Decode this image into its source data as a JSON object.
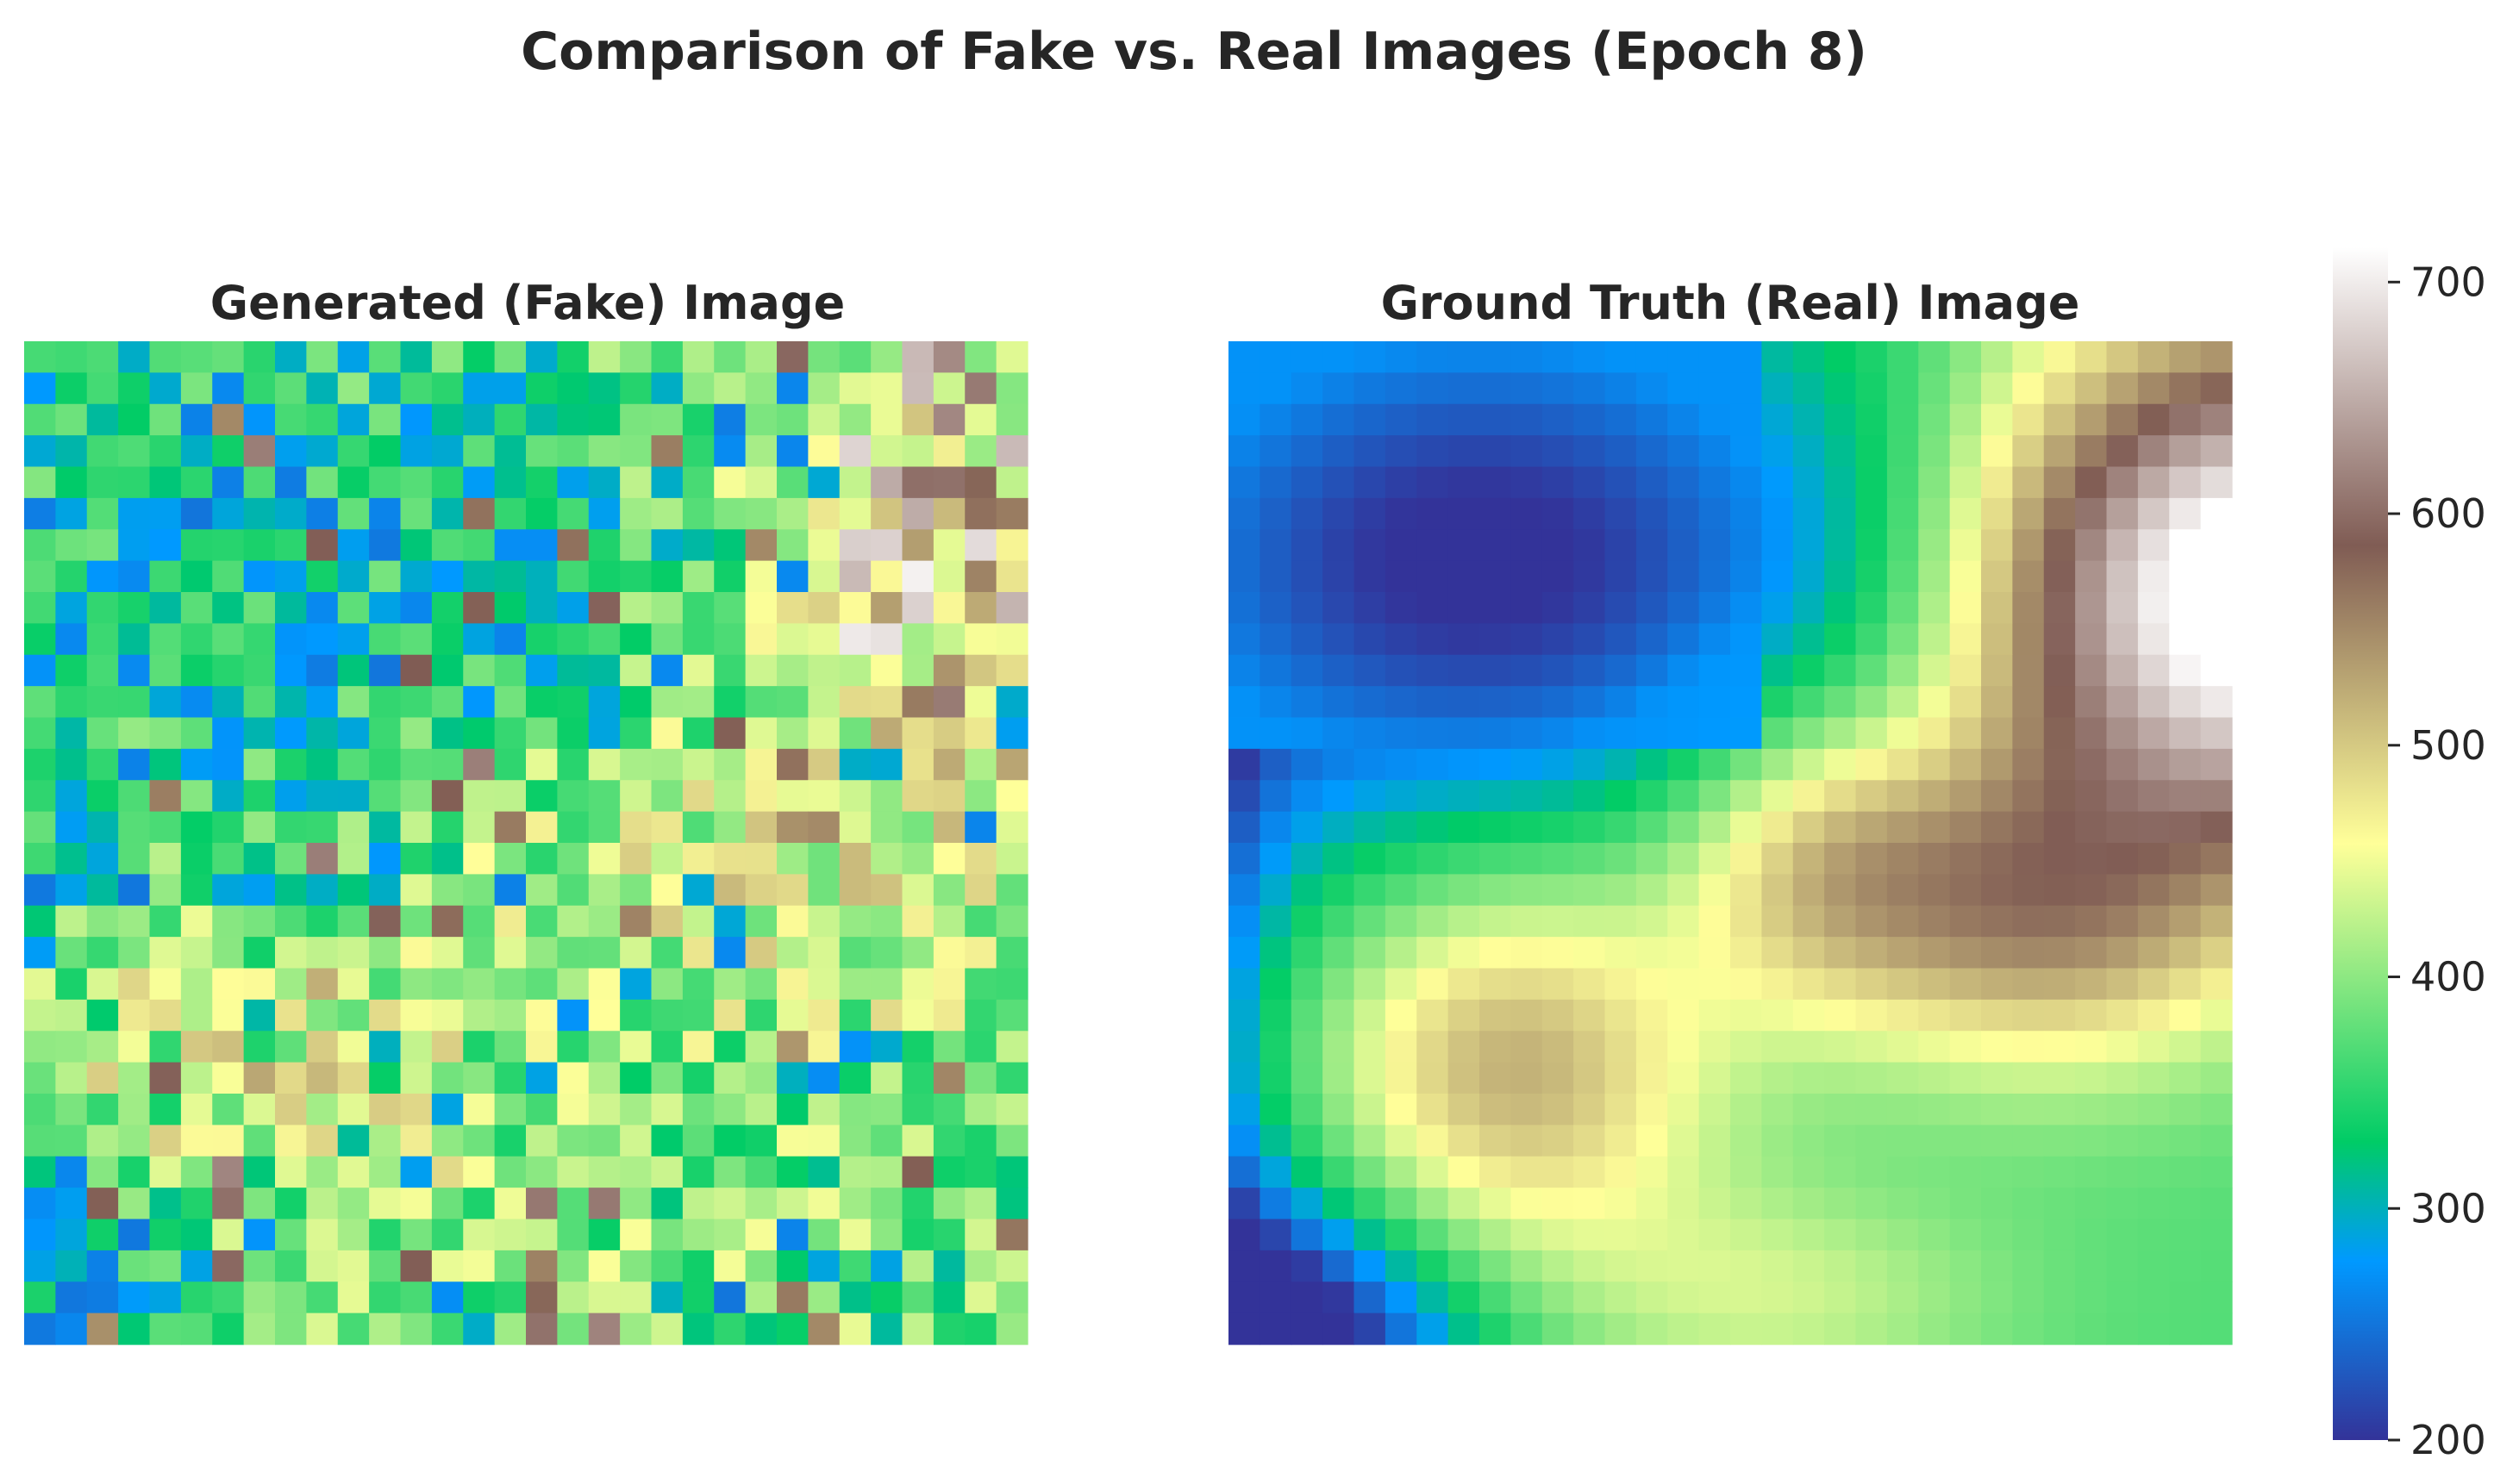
{
  "figure_title": "Comparison of Fake vs. Real Images (Epoch 8)",
  "chart_data": [
    {
      "type": "heatmap",
      "title": "Generated (Fake) Image",
      "rows": 32,
      "cols": 32,
      "colormap": "terrain",
      "vmin": 200,
      "vmax": 715,
      "axes_visible": false,
      "description_of_values": "noisy elevation-like field, mostly 320-480 with scattered 250-300 and 550-700 pixels"
    },
    {
      "type": "heatmap",
      "title": "Ground Truth (Real) Image",
      "rows": 32,
      "cols": 32,
      "colormap": "terrain",
      "vmin": 200,
      "vmax": 715,
      "axes_visible": false
    }
  ],
  "colorbar": {
    "ticks": [
      "200",
      "300",
      "400",
      "500",
      "600",
      "700"
    ],
    "tick_values": [
      200,
      300,
      400,
      500,
      600,
      700
    ],
    "vmin": 200,
    "vmax": 715
  }
}
